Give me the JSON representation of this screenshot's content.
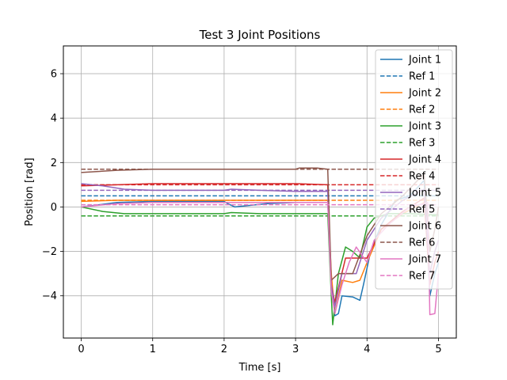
{
  "chart_data": {
    "type": "line",
    "title": "Test 3 Joint Positions",
    "xlabel": "Time [s]",
    "ylabel": "Position [rad]",
    "xlim": [
      -0.25,
      5.25
    ],
    "ylim": [
      -5.9,
      7.25
    ],
    "xticks": [
      0,
      1,
      2,
      3,
      4,
      5
    ],
    "yticks": [
      -4,
      -2,
      0,
      2,
      4,
      6
    ],
    "grid": true,
    "legend_position": "top-right",
    "series": [
      {
        "name": "Joint 1",
        "style": "solid",
        "color": "#1f77b4",
        "points": [
          [
            0,
            0.0
          ],
          [
            0.5,
            0.2
          ],
          [
            1,
            0.25
          ],
          [
            1.5,
            0.25
          ],
          [
            2,
            0.25
          ],
          [
            2.05,
            0.15
          ],
          [
            2.15,
            0.0
          ],
          [
            2.3,
            0.05
          ],
          [
            2.6,
            0.15
          ],
          [
            3,
            0.2
          ],
          [
            3.45,
            0.2
          ],
          [
            3.5,
            -3.3
          ],
          [
            3.55,
            -4.9
          ],
          [
            3.6,
            -4.8
          ],
          [
            3.65,
            -4.0
          ],
          [
            3.8,
            -4.05
          ],
          [
            3.9,
            -4.2
          ],
          [
            3.95,
            -3.5
          ],
          [
            4.05,
            -2.0
          ],
          [
            4.2,
            -0.8
          ],
          [
            4.4,
            0.3
          ],
          [
            4.6,
            0.5
          ],
          [
            4.8,
            1.2
          ],
          [
            4.88,
            -4.0
          ],
          [
            4.95,
            -3.0
          ],
          [
            5,
            -2.5
          ]
        ]
      },
      {
        "name": "Ref 1",
        "style": "dashed",
        "color": "#1f77b4",
        "points": [
          [
            0,
            0.5
          ],
          [
            5,
            0.5
          ]
        ]
      },
      {
        "name": "Joint 2",
        "style": "solid",
        "color": "#ff7f0e",
        "points": [
          [
            0,
            0.25
          ],
          [
            0.5,
            0.3
          ],
          [
            1,
            0.3
          ],
          [
            1.5,
            0.3
          ],
          [
            2,
            0.3
          ],
          [
            2.5,
            0.3
          ],
          [
            3,
            0.3
          ],
          [
            3.45,
            0.3
          ],
          [
            3.5,
            -3.0
          ],
          [
            3.55,
            -4.8
          ],
          [
            3.65,
            -3.3
          ],
          [
            3.8,
            -3.4
          ],
          [
            3.9,
            -3.3
          ],
          [
            4.0,
            -2.5
          ],
          [
            4.2,
            -1.0
          ],
          [
            4.5,
            -0.3
          ],
          [
            4.8,
            0.2
          ],
          [
            4.88,
            -3.0
          ],
          [
            4.95,
            -2.0
          ],
          [
            5,
            -1.5
          ]
        ]
      },
      {
        "name": "Ref 2",
        "style": "dashed",
        "color": "#ff7f0e",
        "points": [
          [
            0,
            0.3
          ],
          [
            5,
            0.3
          ]
        ]
      },
      {
        "name": "Joint 3",
        "style": "solid",
        "color": "#2ca02c",
        "points": [
          [
            0,
            0.0
          ],
          [
            0.3,
            -0.2
          ],
          [
            0.6,
            -0.3
          ],
          [
            1,
            -0.3
          ],
          [
            1.5,
            -0.3
          ],
          [
            2,
            -0.3
          ],
          [
            2.1,
            -0.25
          ],
          [
            2.5,
            -0.3
          ],
          [
            3,
            -0.3
          ],
          [
            3.45,
            -0.3
          ],
          [
            3.5,
            -4.0
          ],
          [
            3.52,
            -5.3
          ],
          [
            3.6,
            -3.0
          ],
          [
            3.7,
            -1.8
          ],
          [
            3.8,
            -2.0
          ],
          [
            3.9,
            -2.3
          ],
          [
            4.0,
            -0.9
          ],
          [
            4.1,
            -0.5
          ],
          [
            4.3,
            -0.3
          ],
          [
            4.6,
            -0.3
          ],
          [
            4.9,
            -0.35
          ],
          [
            5,
            -0.35
          ]
        ]
      },
      {
        "name": "Ref 3",
        "style": "dashed",
        "color": "#2ca02c",
        "points": [
          [
            0,
            -0.4
          ],
          [
            5,
            -0.4
          ]
        ]
      },
      {
        "name": "Joint 4",
        "style": "solid",
        "color": "#d62728",
        "points": [
          [
            0,
            0.95
          ],
          [
            0.5,
            1.0
          ],
          [
            1,
            1.05
          ],
          [
            1.5,
            1.05
          ],
          [
            2,
            1.05
          ],
          [
            2.5,
            1.05
          ],
          [
            3,
            1.05
          ],
          [
            3.45,
            1.0
          ],
          [
            3.5,
            -3.5
          ],
          [
            3.55,
            -4.3
          ],
          [
            3.7,
            -2.3
          ],
          [
            3.85,
            -2.3
          ],
          [
            4.0,
            -2.3
          ],
          [
            4.2,
            -1.0
          ],
          [
            4.5,
            -0.2
          ],
          [
            4.8,
            0.4
          ],
          [
            4.88,
            -3.5
          ],
          [
            4.95,
            -2.5
          ],
          [
            5,
            -2.0
          ]
        ]
      },
      {
        "name": "Ref 4",
        "style": "dashed",
        "color": "#d62728",
        "points": [
          [
            0,
            1.0
          ],
          [
            5,
            1.0
          ]
        ]
      },
      {
        "name": "Joint 5",
        "style": "solid",
        "color": "#9467bd",
        "points": [
          [
            0,
            1.05
          ],
          [
            0.3,
            0.95
          ],
          [
            0.6,
            0.8
          ],
          [
            1,
            0.75
          ],
          [
            1.5,
            0.75
          ],
          [
            2,
            0.75
          ],
          [
            2.1,
            0.8
          ],
          [
            2.5,
            0.75
          ],
          [
            3,
            0.7
          ],
          [
            3.45,
            0.7
          ],
          [
            3.5,
            -3.5
          ],
          [
            3.55,
            -4.5
          ],
          [
            3.65,
            -3.0
          ],
          [
            3.75,
            -3.0
          ],
          [
            3.85,
            -3.0
          ],
          [
            4.0,
            -1.5
          ],
          [
            4.2,
            -0.5
          ],
          [
            4.5,
            0.3
          ],
          [
            4.8,
            0.8
          ],
          [
            4.88,
            -3.0
          ],
          [
            4.95,
            -2.0
          ],
          [
            5,
            -1.5
          ]
        ]
      },
      {
        "name": "Ref 5",
        "style": "dashed",
        "color": "#9467bd",
        "points": [
          [
            0,
            0.75
          ],
          [
            5,
            0.75
          ]
        ]
      },
      {
        "name": "Joint 6",
        "style": "solid",
        "color": "#8c564b",
        "points": [
          [
            0,
            1.55
          ],
          [
            0.5,
            1.65
          ],
          [
            1,
            1.7
          ],
          [
            1.5,
            1.7
          ],
          [
            2,
            1.7
          ],
          [
            2.5,
            1.7
          ],
          [
            3,
            1.7
          ],
          [
            3.05,
            1.75
          ],
          [
            3.3,
            1.75
          ],
          [
            3.45,
            1.7
          ],
          [
            3.5,
            -3.3
          ],
          [
            3.6,
            -3.0
          ],
          [
            3.8,
            -3.0
          ],
          [
            4.0,
            -1.3
          ],
          [
            4.2,
            -0.3
          ],
          [
            4.5,
            0.5
          ],
          [
            4.8,
            1.5
          ],
          [
            4.88,
            -2.0
          ],
          [
            4.95,
            -1.0
          ],
          [
            5,
            0.0
          ]
        ]
      },
      {
        "name": "Ref 6",
        "style": "dashed",
        "color": "#8c564b",
        "points": [
          [
            0,
            1.7
          ],
          [
            5,
            1.7
          ]
        ]
      },
      {
        "name": "Joint 7",
        "style": "solid",
        "color": "#e377c2",
        "points": [
          [
            0,
            0.0
          ],
          [
            0.5,
            0.15
          ],
          [
            1,
            0.2
          ],
          [
            1.5,
            0.2
          ],
          [
            2,
            0.2
          ],
          [
            2.5,
            0.2
          ],
          [
            3,
            0.2
          ],
          [
            3.45,
            0.2
          ],
          [
            3.5,
            -3.8
          ],
          [
            3.55,
            -4.8
          ],
          [
            3.65,
            -3.5
          ],
          [
            3.75,
            -2.5
          ],
          [
            3.85,
            -1.8
          ],
          [
            4.0,
            -2.5
          ],
          [
            4.1,
            -1.5
          ],
          [
            4.3,
            -0.8
          ],
          [
            4.6,
            0.0
          ],
          [
            4.85,
            0.2
          ],
          [
            4.88,
            -4.85
          ],
          [
            4.95,
            -4.8
          ],
          [
            5,
            -3.0
          ]
        ]
      },
      {
        "name": "Ref 7",
        "style": "dashed",
        "color": "#e377c2",
        "points": [
          [
            0,
            0.1
          ],
          [
            5,
            0.1
          ]
        ]
      }
    ]
  }
}
